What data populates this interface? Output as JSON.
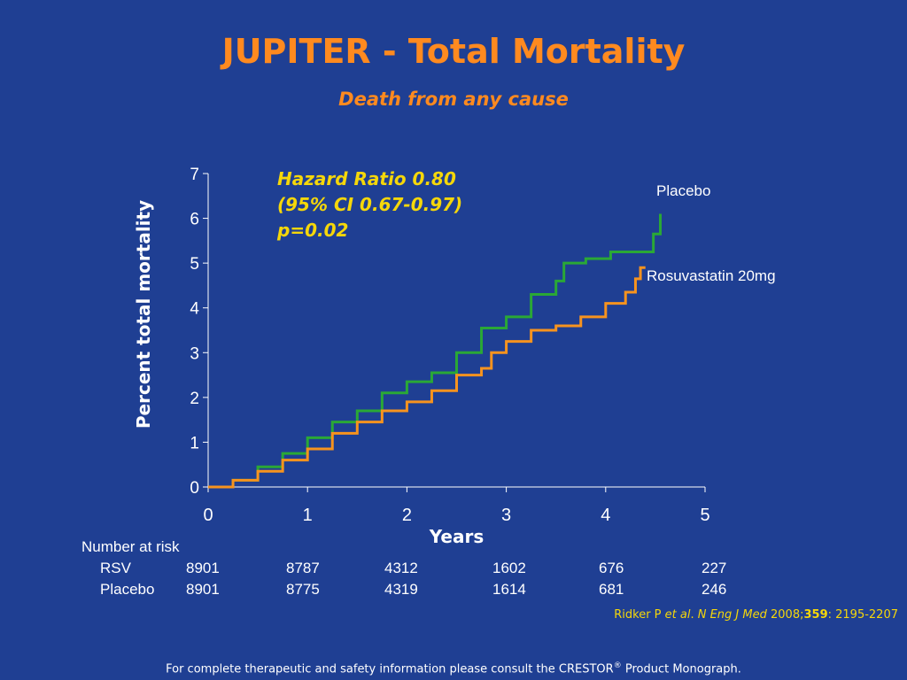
{
  "slide": {
    "title": "JUPITER - Total Mortality",
    "subtitle": "Death from any cause"
  },
  "annotation": {
    "lines": [
      "Hazard Ratio 0.80",
      "(95% CI 0.67-0.97)",
      "p=0.02"
    ]
  },
  "colors": {
    "background": "#1f3f93",
    "title": "#ff8a1f",
    "annotation": "#f5d70a",
    "placebo": "#2aa836",
    "rosuvastatin": "#f7931e"
  },
  "chart_data": {
    "type": "line",
    "xlabel": "Years",
    "ylabel": "Percent total mortality",
    "xlim": [
      0,
      5
    ],
    "ylim": [
      0,
      7
    ],
    "xticks": [
      0,
      1,
      2,
      3,
      4,
      5
    ],
    "yticks": [
      0,
      1,
      2,
      3,
      4,
      5,
      6,
      7
    ],
    "grid": false,
    "series": [
      {
        "name": "Placebo",
        "color": "#2aa836",
        "points": [
          [
            0,
            0
          ],
          [
            0.25,
            0.15
          ],
          [
            0.5,
            0.45
          ],
          [
            0.75,
            0.75
          ],
          [
            1,
            1.1
          ],
          [
            1.25,
            1.45
          ],
          [
            1.5,
            1.7
          ],
          [
            1.75,
            2.1
          ],
          [
            2,
            2.35
          ],
          [
            2.25,
            2.55
          ],
          [
            2.5,
            3.0
          ],
          [
            2.75,
            3.55
          ],
          [
            3,
            3.8
          ],
          [
            3.25,
            4.3
          ],
          [
            3.5,
            4.6
          ],
          [
            3.58,
            5.0
          ],
          [
            3.8,
            5.1
          ],
          [
            4.05,
            5.25
          ],
          [
            4.47,
            5.25
          ],
          [
            4.48,
            5.65
          ],
          [
            4.55,
            5.65
          ],
          [
            4.55,
            6.1
          ]
        ]
      },
      {
        "name": "Rosuvastatin 20mg",
        "color": "#f7931e",
        "points": [
          [
            0,
            0
          ],
          [
            0.25,
            0.15
          ],
          [
            0.5,
            0.35
          ],
          [
            0.75,
            0.6
          ],
          [
            1,
            0.85
          ],
          [
            1.25,
            1.2
          ],
          [
            1.5,
            1.45
          ],
          [
            1.75,
            1.7
          ],
          [
            2,
            1.9
          ],
          [
            2.25,
            2.15
          ],
          [
            2.5,
            2.5
          ],
          [
            2.75,
            2.65
          ],
          [
            2.85,
            3.0
          ],
          [
            3,
            3.25
          ],
          [
            3.25,
            3.5
          ],
          [
            3.5,
            3.6
          ],
          [
            3.75,
            3.8
          ],
          [
            4,
            4.1
          ],
          [
            4.2,
            4.35
          ],
          [
            4.3,
            4.65
          ],
          [
            4.35,
            4.9
          ],
          [
            4.4,
            4.9
          ]
        ]
      }
    ]
  },
  "risk_table": {
    "title": "Number at risk",
    "rows": [
      {
        "label": "RSV",
        "values": [
          "8901",
          "8787",
          "4312",
          "1602",
          "676",
          "227"
        ]
      },
      {
        "label": "Placebo",
        "values": [
          "8901",
          "8775",
          "4319",
          "1614",
          "681",
          "246"
        ]
      }
    ]
  },
  "reference": {
    "author": "Ridker P ",
    "etal": "et al",
    "dot": ". ",
    "journal": "N Eng J Med",
    "year": " 2008;",
    "volume": "359",
    "pages": ": 2195-2207"
  },
  "footer": {
    "text_before": "For complete therapeutic and safety information please consult the CRESTOR",
    "reg": "®",
    "text_after": " Product Monograph."
  }
}
